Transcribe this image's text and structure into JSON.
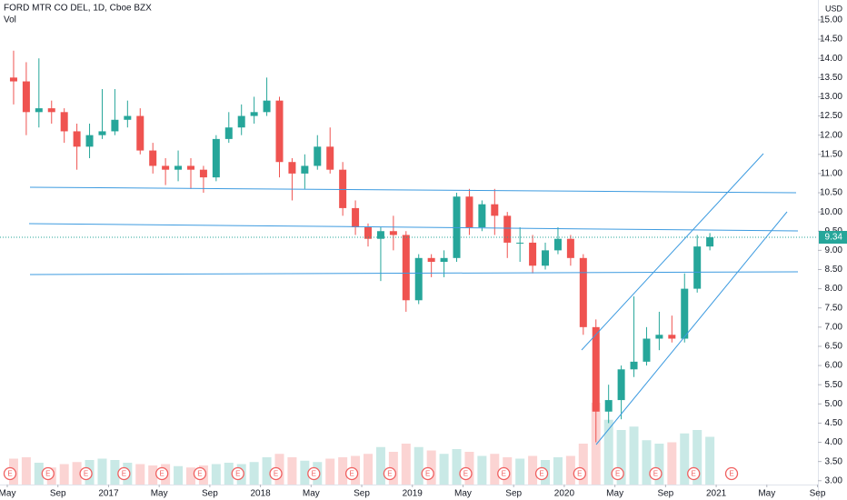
{
  "chart_data": {
    "type": "candlestick",
    "title": "FORD MTR CO DEL, 1D, Cboe BZX",
    "volume_label": "Vol",
    "currency": "USD",
    "x": [
      "2016-05",
      "2016-06",
      "2016-07",
      "2016-08",
      "2016-09",
      "2016-10",
      "2016-11",
      "2016-12",
      "2017-01",
      "2017-02",
      "2017-03",
      "2017-04",
      "2017-05",
      "2017-06",
      "2017-07",
      "2017-08",
      "2017-09",
      "2017-10",
      "2017-11",
      "2017-12",
      "2018-01",
      "2018-02",
      "2018-03",
      "2018-04",
      "2018-05",
      "2018-06",
      "2018-07",
      "2018-08",
      "2018-09",
      "2018-10",
      "2018-11",
      "2018-12",
      "2019-01",
      "2019-02",
      "2019-03",
      "2019-04",
      "2019-05",
      "2019-06",
      "2019-07",
      "2019-08",
      "2019-09",
      "2019-10",
      "2019-11",
      "2019-12",
      "2020-01",
      "2020-02",
      "2020-03",
      "2020-04",
      "2020-05",
      "2020-06",
      "2020-07",
      "2020-08",
      "2020-09",
      "2020-10",
      "2020-11",
      "2020-12"
    ],
    "open": [
      13.5,
      13.4,
      12.6,
      12.7,
      12.6,
      12.1,
      11.7,
      12.0,
      12.1,
      12.4,
      12.5,
      11.6,
      11.2,
      11.1,
      11.2,
      11.1,
      10.9,
      11.9,
      12.2,
      12.5,
      12.6,
      12.9,
      11.3,
      11.0,
      11.2,
      11.7,
      11.1,
      10.1,
      9.6,
      9.3,
      9.5,
      9.4,
      7.7,
      8.8,
      8.7,
      8.8,
      10.4,
      9.6,
      10.2,
      9.9,
      9.2,
      9.2,
      8.6,
      9.0,
      9.3,
      8.8,
      7.0,
      4.8,
      5.1,
      5.9,
      6.1,
      6.7,
      6.8,
      6.7,
      8.0,
      9.1
    ],
    "high": [
      14.2,
      13.9,
      14.0,
      12.9,
      12.7,
      12.3,
      12.3,
      13.2,
      13.2,
      12.9,
      12.7,
      11.8,
      11.4,
      11.6,
      11.4,
      11.2,
      12.0,
      12.6,
      12.8,
      13.0,
      13.5,
      13.0,
      11.4,
      11.5,
      12.0,
      12.2,
      11.3,
      10.3,
      9.7,
      9.6,
      9.9,
      9.5,
      8.9,
      8.9,
      9.0,
      10.5,
      10.6,
      10.3,
      10.6,
      10.0,
      9.6,
      9.4,
      9.2,
      9.6,
      9.4,
      8.9,
      7.2,
      5.5,
      6.0,
      7.8,
      7.0,
      7.4,
      7.3,
      8.4,
      9.4,
      9.45
    ],
    "low": [
      12.8,
      12.0,
      12.2,
      12.3,
      11.8,
      11.1,
      11.4,
      11.9,
      12.0,
      12.2,
      11.5,
      11.0,
      10.7,
      10.8,
      10.6,
      10.5,
      10.8,
      11.8,
      12.0,
      12.3,
      12.5,
      10.9,
      10.3,
      10.6,
      11.1,
      11.0,
      9.9,
      9.4,
      9.1,
      8.2,
      9.0,
      7.4,
      7.6,
      8.3,
      8.3,
      8.7,
      9.4,
      9.5,
      9.4,
      8.8,
      8.7,
      8.4,
      8.5,
      8.9,
      8.6,
      6.8,
      4.0,
      4.5,
      4.6,
      5.7,
      6.0,
      6.4,
      6.6,
      6.6,
      7.9,
      9.0
    ],
    "close": [
      13.4,
      12.6,
      12.7,
      12.6,
      12.1,
      11.7,
      12.0,
      12.1,
      12.4,
      12.5,
      11.6,
      11.2,
      11.1,
      11.2,
      11.1,
      10.9,
      11.9,
      12.2,
      12.5,
      12.6,
      12.9,
      11.3,
      11.0,
      11.2,
      11.7,
      11.1,
      10.1,
      9.6,
      9.3,
      9.5,
      9.4,
      7.7,
      8.8,
      8.7,
      8.8,
      10.4,
      9.6,
      10.2,
      9.9,
      9.2,
      9.2,
      8.6,
      9.0,
      9.3,
      8.8,
      7.0,
      4.8,
      5.1,
      5.9,
      6.1,
      6.7,
      6.8,
      6.7,
      8.0,
      9.1,
      9.34
    ],
    "volume": [
      38,
      40,
      32,
      25,
      30,
      33,
      36,
      38,
      36,
      32,
      30,
      28,
      30,
      27,
      25,
      28,
      30,
      32,
      30,
      33,
      40,
      45,
      40,
      35,
      33,
      38,
      40,
      42,
      45,
      55,
      48,
      60,
      55,
      50,
      45,
      52,
      48,
      42,
      45,
      40,
      38,
      42,
      36,
      40,
      42,
      60,
      120,
      95,
      80,
      85,
      65,
      60,
      62,
      75,
      80,
      70
    ],
    "earnings_marker": "E",
    "earnings_dates": [
      "2016-05",
      "2016-08",
      "2016-11",
      "2017-02",
      "2017-05",
      "2017-08",
      "2017-11",
      "2018-02",
      "2018-05",
      "2018-08",
      "2018-11",
      "2019-02",
      "2019-05",
      "2019-08",
      "2019-11",
      "2020-02",
      "2020-05",
      "2020-08",
      "2020-11",
      "2021-02"
    ],
    "up_color": "#26a69a",
    "down_color": "#ef5350",
    "ylim": [
      2.9,
      15.52
    ],
    "yticks": [
      {
        "value": 3,
        "label": "3.00"
      },
      {
        "value": 3.5,
        "label": "3.50"
      },
      {
        "value": 4,
        "label": "4.00"
      },
      {
        "value": 4.5,
        "label": "4.50"
      },
      {
        "value": 5,
        "label": "5.00"
      },
      {
        "value": 5.5,
        "label": "5.50"
      },
      {
        "value": 6,
        "label": "6.00"
      },
      {
        "value": 6.5,
        "label": "6.50"
      },
      {
        "value": 7,
        "label": "7.00"
      },
      {
        "value": 7.5,
        "label": "7.50"
      },
      {
        "value": 8,
        "label": "8.00"
      },
      {
        "value": 8.5,
        "label": "8.50"
      },
      {
        "value": 9,
        "label": "9.00"
      },
      {
        "value": 9.5,
        "label": "9.50"
      },
      {
        "value": 10,
        "label": "10.00"
      },
      {
        "value": 10.5,
        "label": "10.50"
      },
      {
        "value": 11,
        "label": "11.00"
      },
      {
        "value": 11.5,
        "label": "11.50"
      },
      {
        "value": 12,
        "label": "12.00"
      },
      {
        "value": 12.5,
        "label": "12.50"
      },
      {
        "value": 13,
        "label": "13.00"
      },
      {
        "value": 13.5,
        "label": "13.50"
      },
      {
        "value": 14,
        "label": "14.00"
      },
      {
        "value": 14.5,
        "label": "14.50"
      },
      {
        "value": 15,
        "label": "15.00"
      }
    ],
    "xticks": [
      {
        "value": "2016-05",
        "label": "May"
      },
      {
        "value": "2016-09",
        "label": "Sep"
      },
      {
        "value": "2017-01",
        "label": "2017"
      },
      {
        "value": "2017-05",
        "label": "May"
      },
      {
        "value": "2017-09",
        "label": "Sep"
      },
      {
        "value": "2018-01",
        "label": "2018"
      },
      {
        "value": "2018-05",
        "label": "May"
      },
      {
        "value": "2018-09",
        "label": "Sep"
      },
      {
        "value": "2019-01",
        "label": "2019"
      },
      {
        "value": "2019-05",
        "label": "May"
      },
      {
        "value": "2019-09",
        "label": "Sep"
      },
      {
        "value": "2020-01",
        "label": "2020"
      },
      {
        "value": "2020-05",
        "label": "May"
      },
      {
        "value": "2020-09",
        "label": "Sep"
      },
      {
        "value": "2021-01",
        "label": "2021"
      },
      {
        "value": "2021-05",
        "label": "May"
      },
      {
        "value": "2021-09",
        "label": "Sep"
      }
    ],
    "grid": false
  }
}
